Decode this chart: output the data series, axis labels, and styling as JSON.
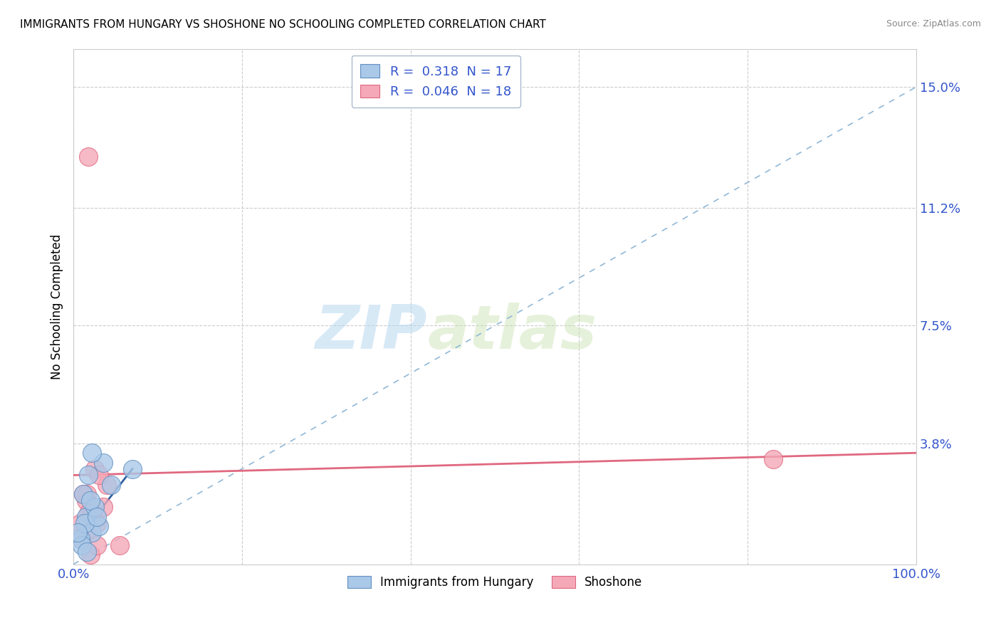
{
  "title": "IMMIGRANTS FROM HUNGARY VS SHOSHONE NO SCHOOLING COMPLETED CORRELATION CHART",
  "source": "Source: ZipAtlas.com",
  "ylabel": "No Schooling Completed",
  "xlabel": "",
  "xlim": [
    0,
    100
  ],
  "ylim": [
    0,
    16.2
  ],
  "ytick_values": [
    3.8,
    7.5,
    11.2,
    15.0
  ],
  "xtick_values": [
    0,
    20,
    40,
    60,
    80,
    100
  ],
  "xtick_labels": [
    "0.0%",
    "",
    "",
    "",
    "",
    "100.0%"
  ],
  "ytick_labels": [
    "3.8%",
    "7.5%",
    "11.2%",
    "15.0%"
  ],
  "blue_R": 0.318,
  "blue_N": 17,
  "pink_R": 0.046,
  "pink_N": 18,
  "blue_points_x": [
    1.2,
    1.5,
    1.8,
    2.2,
    2.5,
    3.0,
    3.5,
    0.8,
    1.0,
    1.3,
    2.0,
    2.8,
    4.5,
    1.6,
    0.5,
    2.2,
    7.0
  ],
  "blue_points_y": [
    2.2,
    1.5,
    2.8,
    1.0,
    1.8,
    1.2,
    3.2,
    0.8,
    0.6,
    1.3,
    2.0,
    1.5,
    2.5,
    0.4,
    1.0,
    3.5,
    3.0
  ],
  "pink_points_x": [
    1.5,
    2.8,
    4.0,
    1.0,
    1.8,
    2.5,
    3.5,
    5.5,
    1.2,
    0.8,
    2.0,
    1.5,
    3.0,
    2.2,
    1.8,
    83.0,
    2.8,
    1.6
  ],
  "pink_points_y": [
    2.0,
    1.3,
    2.5,
    0.8,
    1.6,
    3.0,
    1.8,
    0.6,
    2.2,
    1.3,
    0.3,
    1.0,
    2.8,
    1.6,
    12.8,
    3.3,
    0.6,
    2.2
  ],
  "blue_color": "#aac8e8",
  "pink_color": "#f4a8b8",
  "blue_edge_color": "#6090c0",
  "pink_edge_color": "#e06880",
  "trend_blue_dashed_color": "#90b8d8",
  "trend_blue_solid_color": "#3060a0",
  "trend_pink_solid_color": "#e06880",
  "trend_blue_x0": 0,
  "trend_blue_y0": 0.0,
  "trend_blue_x1": 100,
  "trend_blue_y1": 15.0,
  "trend_pink_x0": 0,
  "trend_pink_y0": 2.8,
  "trend_pink_x1": 100,
  "trend_pink_y1": 3.5,
  "trend_blue_solid_x0": 0.5,
  "trend_blue_solid_y0": 0.8,
  "trend_blue_solid_x1": 7.0,
  "trend_blue_solid_y1": 3.0,
  "grid_color": "#cccccc",
  "grid_style": "--",
  "background_color": "#ffffff",
  "tick_color": "#3355cc",
  "legend_text_color": "#3355cc"
}
